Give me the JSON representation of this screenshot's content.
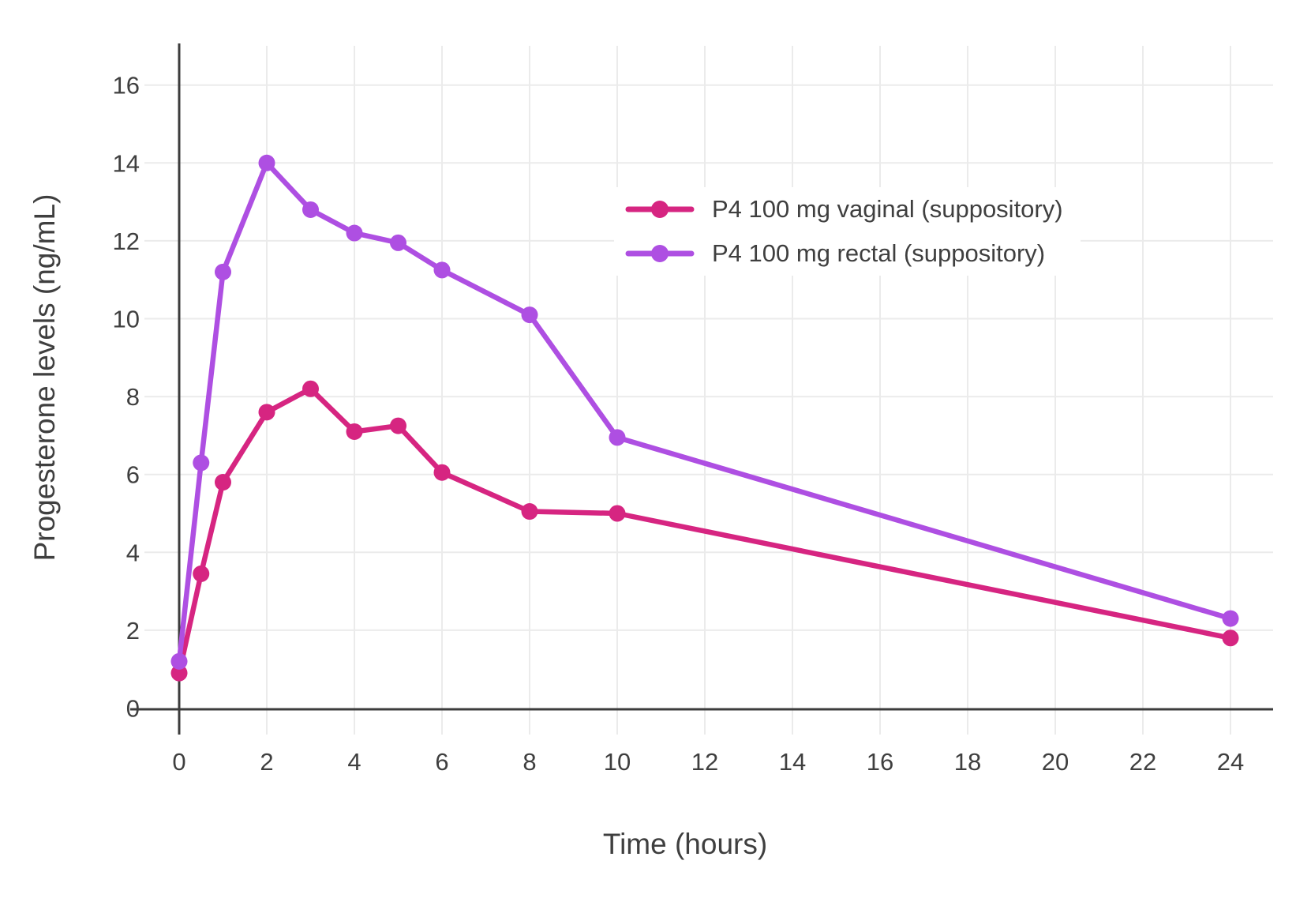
{
  "chart_data": {
    "type": "line",
    "xlabel": "Time (hours)",
    "ylabel": "Progesterone levels (ng/mL)",
    "x": [
      0,
      0.5,
      1,
      2,
      3,
      4,
      5,
      6,
      8,
      10,
      24
    ],
    "series": [
      {
        "name": "P4 100 mg vaginal (suppository)",
        "color": "#D62581",
        "values": [
          0.9,
          3.45,
          5.8,
          7.6,
          8.2,
          7.1,
          7.25,
          6.05,
          5.05,
          5.0,
          1.8
        ]
      },
      {
        "name": "P4 100 mg rectal (suppository)",
        "color": "#AE4FE2",
        "values": [
          1.2,
          6.3,
          11.2,
          14.0,
          12.8,
          12.2,
          11.95,
          11.25,
          10.1,
          6.95,
          2.3
        ]
      }
    ],
    "x_ticks": [
      0,
      2,
      4,
      6,
      8,
      10,
      12,
      14,
      16,
      18,
      20,
      22,
      24
    ],
    "y_ticks": [
      0,
      2,
      4,
      6,
      8,
      10,
      12,
      14,
      16
    ],
    "xlim": [
      0,
      25
    ],
    "ylim": [
      0,
      17
    ],
    "grid": true,
    "legend_position": "upper right",
    "colors": {
      "axis": "#3C3C3C",
      "grid": "#EBEBEB",
      "text": "#3F3F3F",
      "background": "#FFFFFF"
    }
  },
  "legend": {
    "items": [
      {
        "label": "P4 100 mg vaginal (suppository)",
        "color": "#D62581"
      },
      {
        "label": "P4 100 mg rectal (suppository)",
        "color": "#AE4FE2"
      }
    ]
  }
}
